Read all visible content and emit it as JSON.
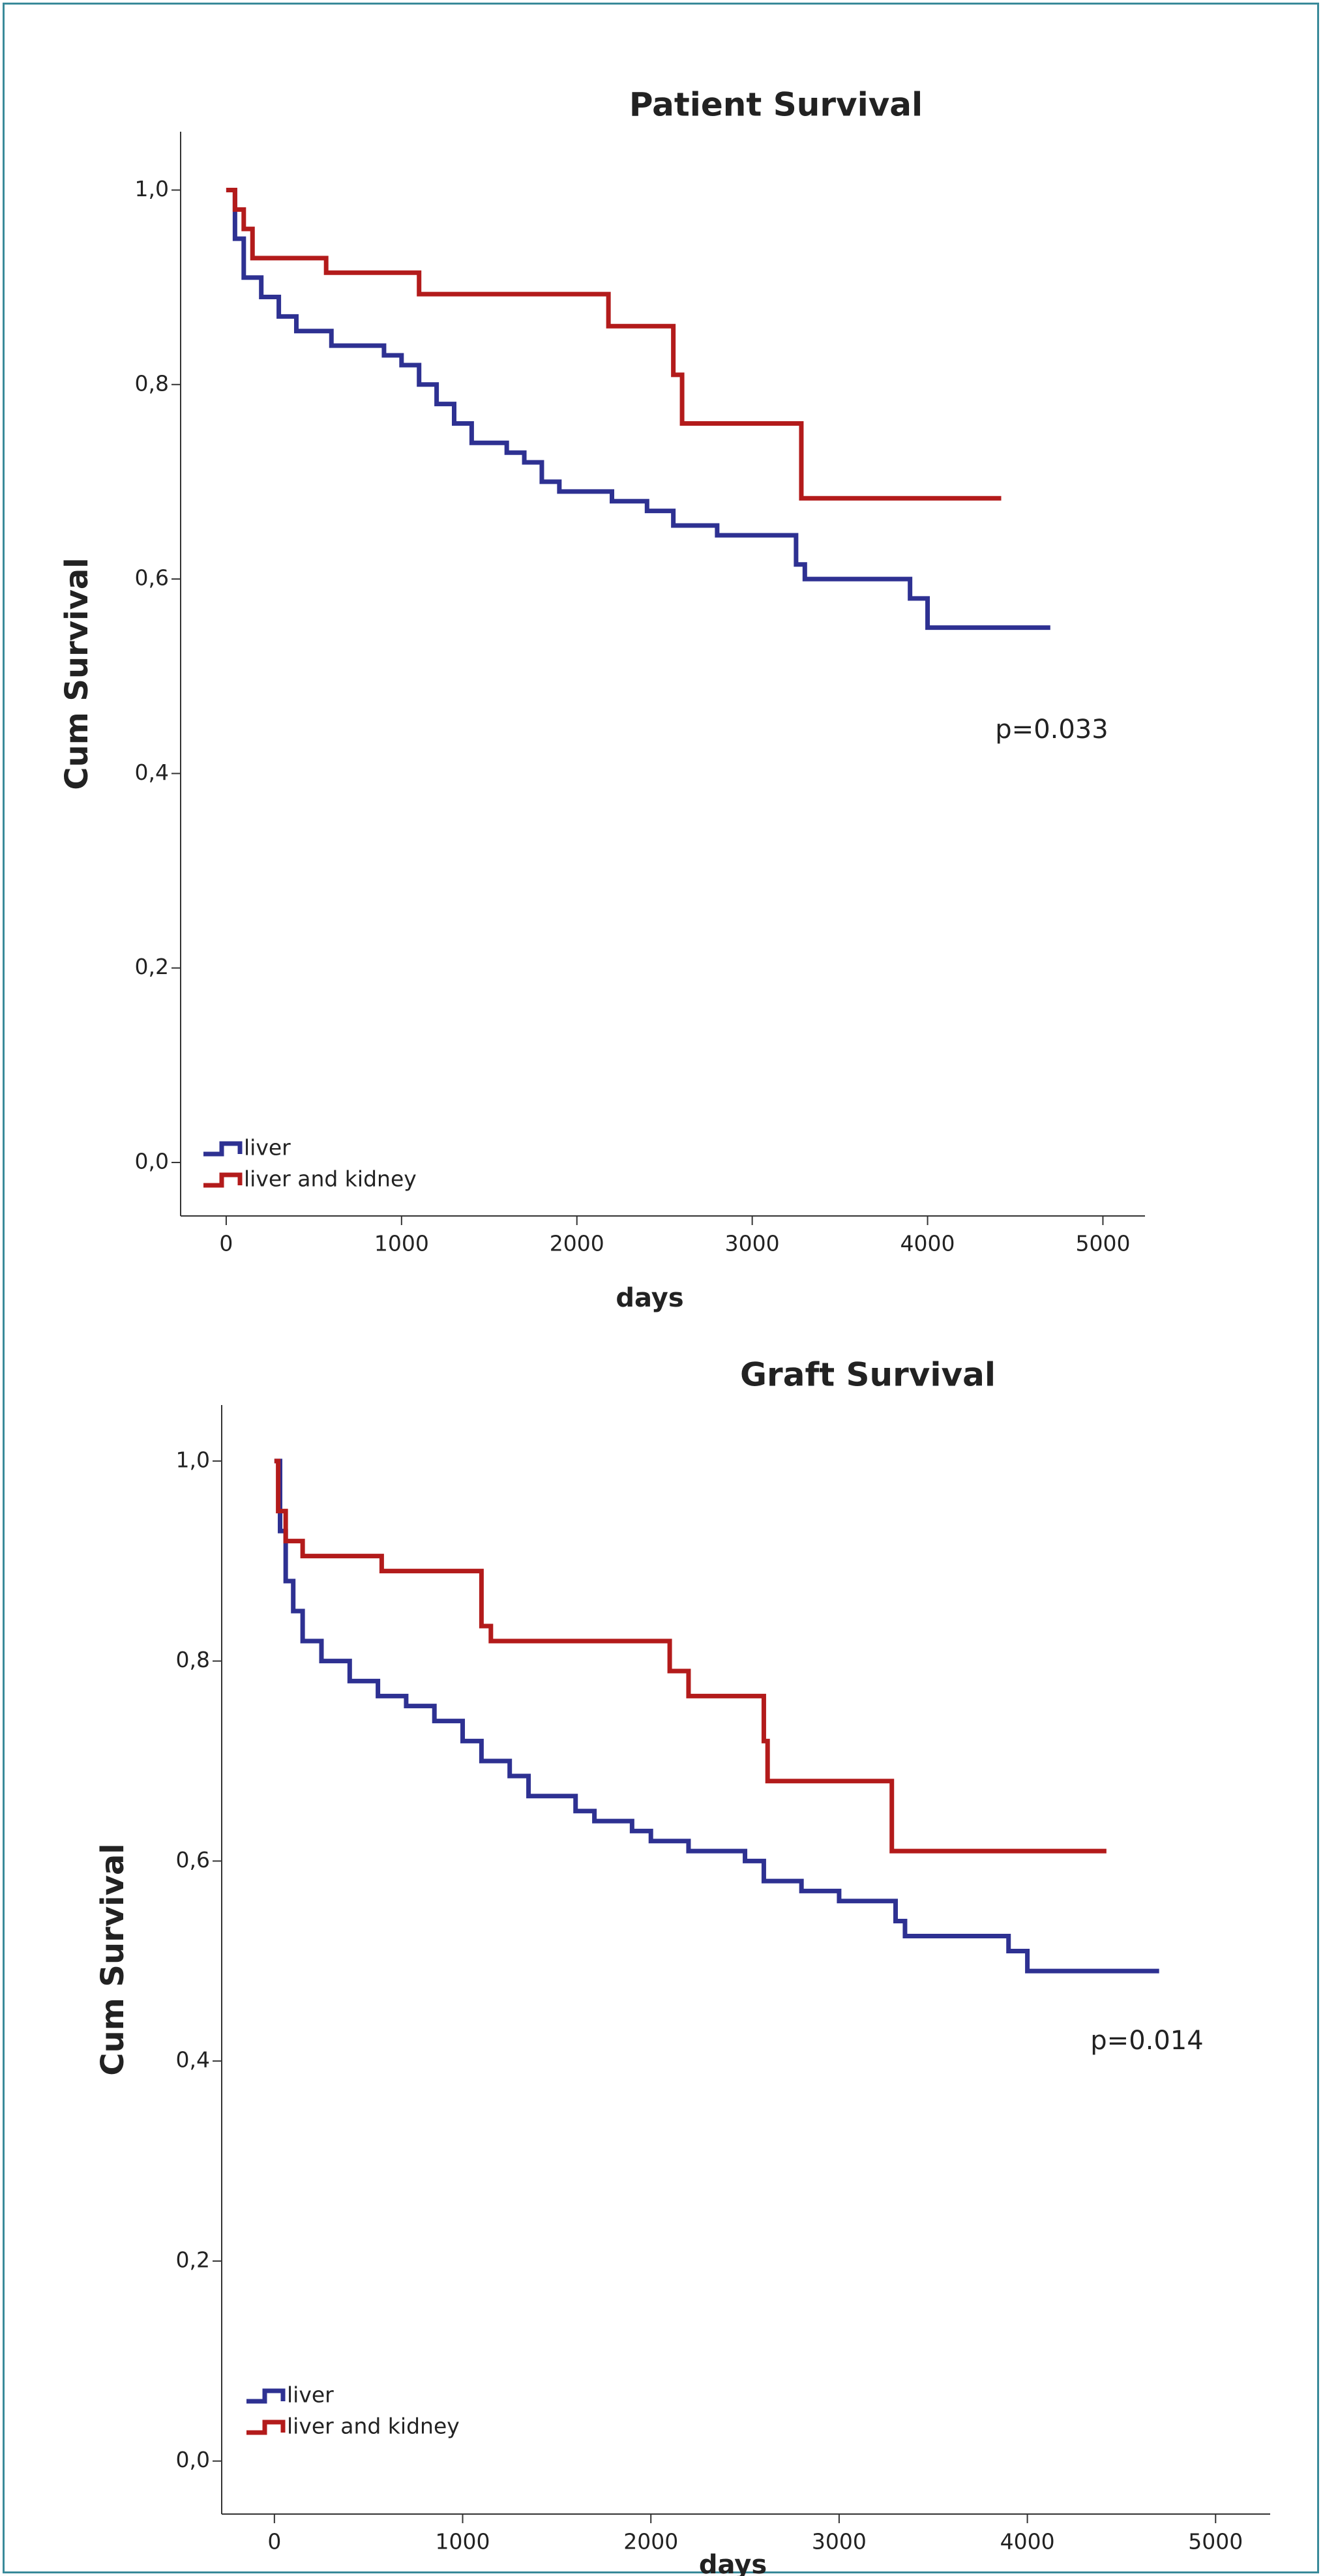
{
  "chart_data": [
    {
      "type": "step",
      "title": "Patient Survival",
      "x_label": "days",
      "y_label": "Cum Survival",
      "annotation": "p=0.033",
      "xlim": [
        -260,
        5240
      ],
      "ylim": [
        -0.055,
        1.06
      ],
      "xticks": [
        0,
        1000,
        2000,
        3000,
        4000,
        5000
      ],
      "yticks": [
        {
          "value": 0,
          "label": "0,0"
        },
        {
          "value": 0.2,
          "label": "0,2"
        },
        {
          "value": 0.4,
          "label": "0,4"
        },
        {
          "value": 0.6,
          "label": "0,6"
        },
        {
          "value": 0.8,
          "label": "0,8"
        },
        {
          "value": 1,
          "label": "1,0"
        }
      ],
      "legend": "lower left",
      "series": [
        {
          "name": "liver",
          "color": "#2e3192",
          "x": [
            0,
            50,
            100,
            200,
            300,
            400,
            600,
            900,
            1000,
            1100,
            1200,
            1300,
            1400,
            1600,
            1700,
            1800,
            1900,
            2200,
            2400,
            2550,
            2800,
            3250,
            3300,
            3900,
            4000,
            4700
          ],
          "values": [
            1.0,
            0.95,
            0.91,
            0.89,
            0.87,
            0.855,
            0.84,
            0.83,
            0.82,
            0.8,
            0.78,
            0.76,
            0.74,
            0.73,
            0.72,
            0.7,
            0.69,
            0.68,
            0.67,
            0.655,
            0.645,
            0.615,
            0.6,
            0.58,
            0.55,
            0.55
          ]
        },
        {
          "name": "liver and kidney",
          "color": "#b31b1b",
          "x": [
            0,
            50,
            100,
            150,
            570,
            1100,
            2180,
            2550,
            2600,
            3280,
            4420
          ],
          "values": [
            1.0,
            0.98,
            0.96,
            0.93,
            0.915,
            0.893,
            0.86,
            0.81,
            0.76,
            0.683,
            0.683
          ]
        }
      ]
    },
    {
      "type": "step",
      "title": "Graft Survival",
      "x_label": "days",
      "y_label": "Cum Survival",
      "annotation": "p=0.014",
      "xlim": [
        -280,
        5290
      ],
      "ylim": [
        -0.053,
        1.056
      ],
      "xticks": [
        0,
        1000,
        2000,
        3000,
        4000,
        5000
      ],
      "yticks": [
        {
          "value": 0,
          "label": "0,0"
        },
        {
          "value": 0.2,
          "label": "0,2"
        },
        {
          "value": 0.4,
          "label": "0,4"
        },
        {
          "value": 0.6,
          "label": "0,6"
        },
        {
          "value": 0.8,
          "label": "0,8"
        },
        {
          "value": 1,
          "label": "1,0"
        }
      ],
      "legend": "lower left",
      "series": [
        {
          "name": "liver",
          "color": "#2e3192",
          "x": [
            0,
            30,
            60,
            100,
            150,
            250,
            400,
            550,
            700,
            850,
            1000,
            1100,
            1250,
            1350,
            1600,
            1700,
            1900,
            2000,
            2200,
            2500,
            2600,
            2800,
            3000,
            3300,
            3350,
            3900,
            4000,
            4700
          ],
          "values": [
            1.0,
            0.93,
            0.88,
            0.85,
            0.82,
            0.8,
            0.78,
            0.765,
            0.755,
            0.74,
            0.72,
            0.7,
            0.685,
            0.665,
            0.65,
            0.64,
            0.63,
            0.62,
            0.61,
            0.6,
            0.58,
            0.57,
            0.56,
            0.54,
            0.525,
            0.51,
            0.49,
            0.49
          ]
        },
        {
          "name": "liver and kidney",
          "color": "#b31b1b",
          "x": [
            0,
            20,
            60,
            150,
            570,
            1100,
            1150,
            2100,
            2200,
            2600,
            2620,
            3280,
            4420
          ],
          "values": [
            1.0,
            0.95,
            0.92,
            0.905,
            0.89,
            0.835,
            0.82,
            0.79,
            0.765,
            0.72,
            0.68,
            0.61,
            0.61
          ]
        }
      ]
    }
  ]
}
